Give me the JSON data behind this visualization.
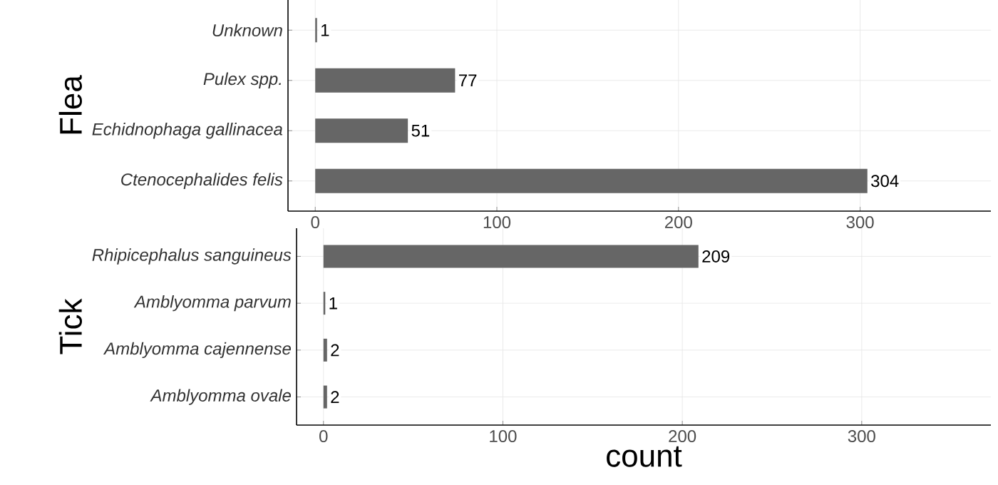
{
  "chart_data": [
    {
      "type": "bar",
      "orientation": "horizontal",
      "ylabel": "Flea",
      "categories": [
        "Unknown",
        "Pulex spp.",
        "Echidnophaga gallinacea",
        "Ctenocephalides felis"
      ],
      "values": [
        1,
        77,
        51,
        304
      ],
      "color": "#666666",
      "xlim": [
        -15,
        372
      ],
      "xticks": [
        0,
        100,
        200,
        300
      ],
      "grid": true,
      "data_labels": true
    },
    {
      "type": "bar",
      "orientation": "horizontal",
      "ylabel": "Tick",
      "xlabel": "count",
      "categories": [
        "Rhipicephalus sanguineus",
        "Amblyomma parvum",
        "Amblyomma cajennense",
        "Amblyomma  ovale"
      ],
      "values": [
        209,
        1,
        2,
        2
      ],
      "color": "#666666",
      "xlim": [
        -15,
        372
      ],
      "xticks": [
        0,
        100,
        200,
        300
      ],
      "grid": true,
      "data_labels": true
    }
  ]
}
